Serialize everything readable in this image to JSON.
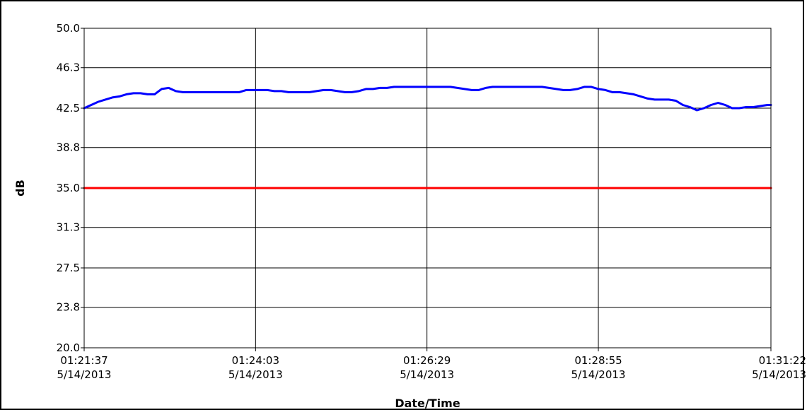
{
  "chart_data": {
    "type": "line",
    "title": "",
    "xlabel": "Date/Time",
    "ylabel": "dB",
    "ylim": [
      20.0,
      50.0
    ],
    "yticks": [
      "20.0",
      "23.8",
      "27.5",
      "31.3",
      "35.0",
      "38.8",
      "42.5",
      "46.3",
      "50.0"
    ],
    "xticks": [
      {
        "time": "01:21:37",
        "date": "5/14/2013"
      },
      {
        "time": "01:24:03",
        "date": "5/14/2013"
      },
      {
        "time": "01:26:29",
        "date": "5/14/2013"
      },
      {
        "time": "01:28:55",
        "date": "5/14/2013"
      },
      {
        "time": "01:31:22",
        "date": "5/14/2013"
      }
    ],
    "xlim": [
      "2013-05-14 01:21:37",
      "2013-05-14 01:31:22"
    ],
    "grid": true,
    "series": [
      {
        "color": "#0000ff",
        "x": [
          "01:21:37",
          "01:21:43",
          "01:21:49",
          "01:21:55",
          "01:22:01",
          "01:22:07",
          "01:22:13",
          "01:22:19",
          "01:22:25",
          "01:22:31",
          "01:22:37",
          "01:22:43",
          "01:22:49",
          "01:22:55",
          "01:23:01",
          "01:23:07",
          "01:23:13",
          "01:23:19",
          "01:23:25",
          "01:23:31",
          "01:23:37",
          "01:23:43",
          "01:23:49",
          "01:23:55",
          "01:24:01",
          "01:24:07",
          "01:24:13",
          "01:24:19",
          "01:24:25",
          "01:24:31",
          "01:24:37",
          "01:24:43",
          "01:24:49",
          "01:24:55",
          "01:25:01",
          "01:25:07",
          "01:25:13",
          "01:25:19",
          "01:25:25",
          "01:25:31",
          "01:25:37",
          "01:25:43",
          "01:25:49",
          "01:25:55",
          "01:26:01",
          "01:26:07",
          "01:26:13",
          "01:26:19",
          "01:26:25",
          "01:26:31",
          "01:26:37",
          "01:26:43",
          "01:26:49",
          "01:26:55",
          "01:27:01",
          "01:27:07",
          "01:27:13",
          "01:27:19",
          "01:27:25",
          "01:27:31",
          "01:27:37",
          "01:27:43",
          "01:27:49",
          "01:27:55",
          "01:28:01",
          "01:28:07",
          "01:28:13",
          "01:28:19",
          "01:28:25",
          "01:28:31",
          "01:28:37",
          "01:28:43",
          "01:28:49",
          "01:28:55",
          "01:29:01",
          "01:29:07",
          "01:29:13",
          "01:29:19",
          "01:29:25",
          "01:29:31",
          "01:29:37",
          "01:29:43",
          "01:29:49",
          "01:29:55",
          "01:30:01",
          "01:30:07",
          "01:30:13",
          "01:30:19",
          "01:30:25",
          "01:30:31",
          "01:30:37",
          "01:30:43",
          "01:30:49",
          "01:30:55",
          "01:31:01",
          "01:31:07",
          "01:31:13",
          "01:31:19",
          "01:31:22"
        ],
        "values": [
          42.5,
          42.8,
          43.1,
          43.3,
          43.5,
          43.6,
          43.8,
          43.9,
          43.9,
          43.8,
          43.8,
          44.3,
          44.4,
          44.1,
          44.0,
          44.0,
          44.0,
          44.0,
          44.0,
          44.0,
          44.0,
          44.0,
          44.0,
          44.2,
          44.2,
          44.2,
          44.2,
          44.1,
          44.1,
          44.0,
          44.0,
          44.0,
          44.0,
          44.1,
          44.2,
          44.2,
          44.1,
          44.0,
          44.0,
          44.1,
          44.3,
          44.3,
          44.4,
          44.4,
          44.5,
          44.5,
          44.5,
          44.5,
          44.5,
          44.5,
          44.5,
          44.5,
          44.5,
          44.4,
          44.3,
          44.2,
          44.2,
          44.4,
          44.5,
          44.5,
          44.5,
          44.5,
          44.5,
          44.5,
          44.5,
          44.5,
          44.4,
          44.3,
          44.2,
          44.2,
          44.3,
          44.5,
          44.5,
          44.3,
          44.2,
          44.0,
          44.0,
          43.9,
          43.8,
          43.6,
          43.4,
          43.3,
          43.3,
          43.3,
          43.2,
          42.8,
          42.6,
          42.3,
          42.5,
          42.8,
          43.0,
          42.8,
          42.5,
          42.5,
          42.6,
          42.6,
          42.7,
          42.8,
          42.8
        ]
      },
      {
        "color": "#ff0000",
        "x": [
          "01:21:37",
          "01:31:22"
        ],
        "values": [
          35.0,
          35.0
        ]
      }
    ]
  }
}
